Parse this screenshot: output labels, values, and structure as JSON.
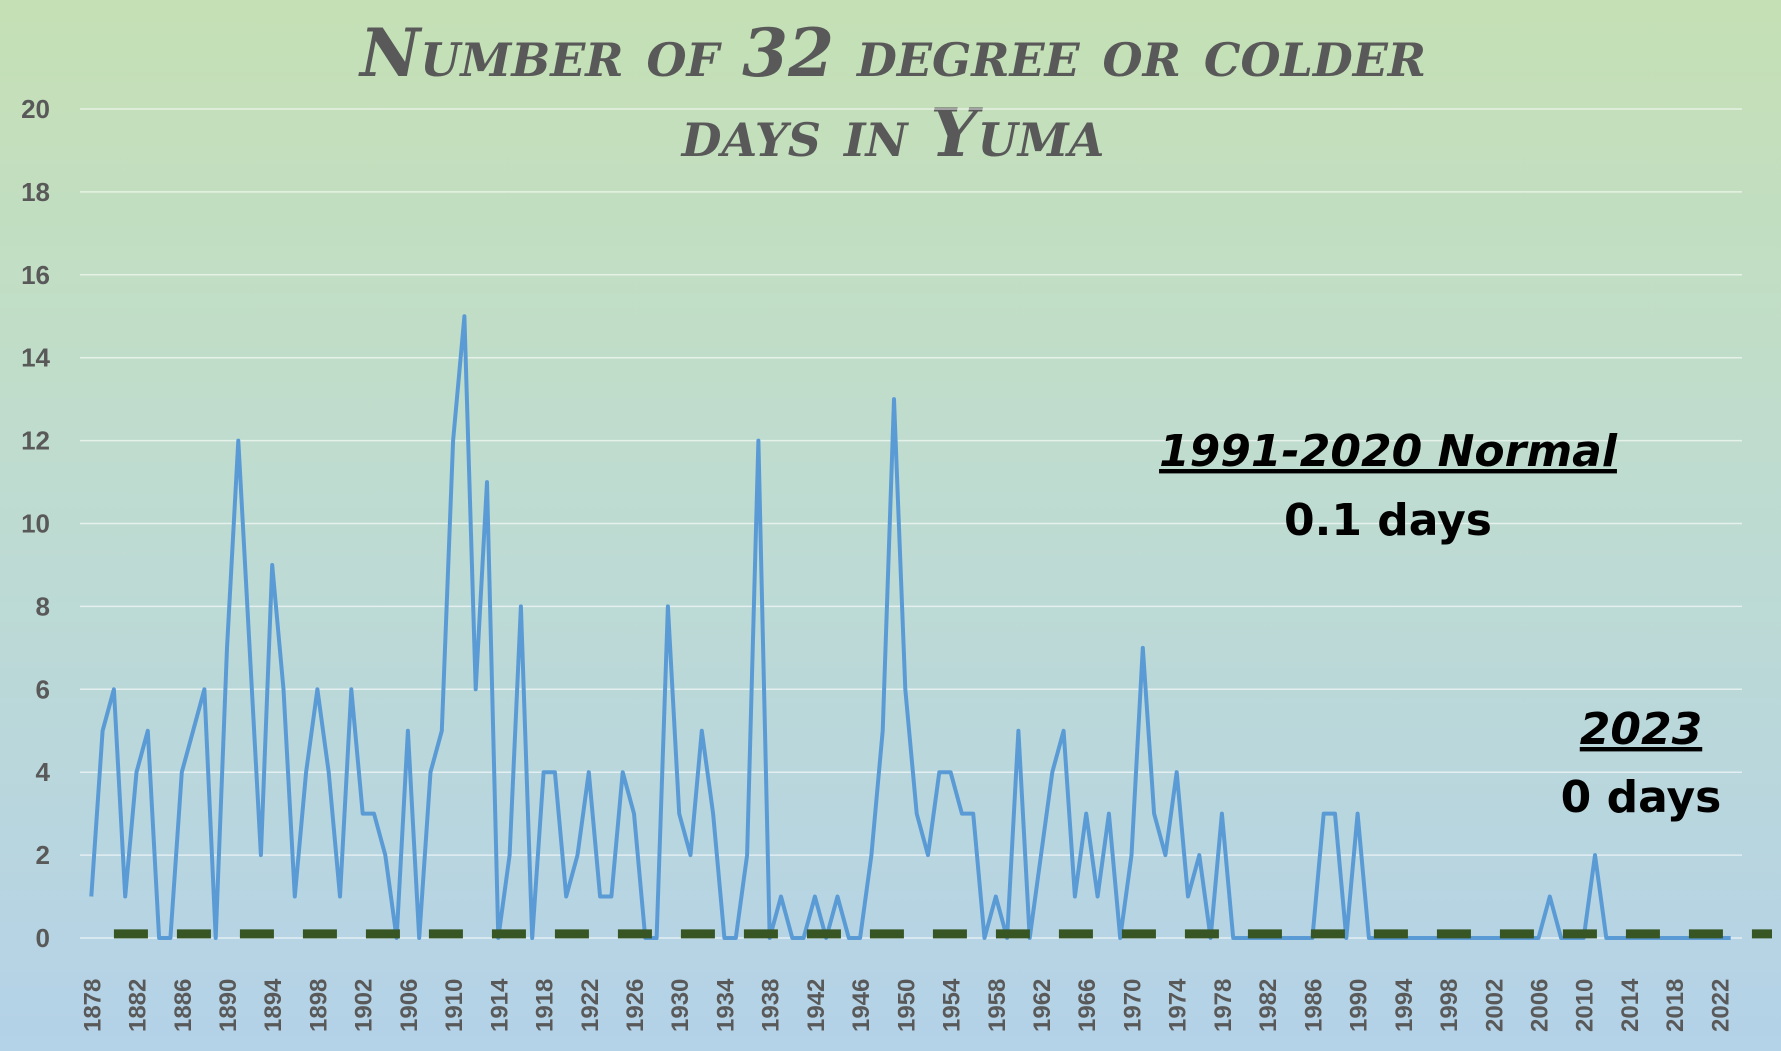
{
  "chart_data": {
    "type": "line",
    "title_lines": [
      "Number of 32 degree or colder",
      "days in Yuma"
    ],
    "xlabel": "",
    "ylabel": "",
    "ylim": [
      0,
      20
    ],
    "yticks": [
      "0",
      "2",
      "4",
      "6",
      "8",
      "10",
      "12",
      "14",
      "16",
      "18",
      "20"
    ],
    "grid": true,
    "x": [
      1878,
      1879,
      1880,
      1881,
      1882,
      1883,
      1884,
      1885,
      1886,
      1887,
      1888,
      1889,
      1890,
      1891,
      1892,
      1893,
      1894,
      1895,
      1896,
      1897,
      1898,
      1899,
      1900,
      1901,
      1902,
      1903,
      1904,
      1905,
      1906,
      1907,
      1908,
      1909,
      1910,
      1911,
      1912,
      1913,
      1914,
      1915,
      1916,
      1917,
      1918,
      1919,
      1920,
      1921,
      1922,
      1923,
      1924,
      1925,
      1926,
      1927,
      1928,
      1929,
      1930,
      1931,
      1932,
      1933,
      1934,
      1935,
      1936,
      1937,
      1938,
      1939,
      1940,
      1941,
      1942,
      1943,
      1944,
      1945,
      1946,
      1947,
      1948,
      1949,
      1950,
      1951,
      1952,
      1953,
      1954,
      1955,
      1956,
      1957,
      1958,
      1959,
      1960,
      1961,
      1962,
      1963,
      1964,
      1965,
      1966,
      1967,
      1968,
      1969,
      1970,
      1971,
      1972,
      1973,
      1974,
      1975,
      1976,
      1977,
      1978,
      1979,
      1980,
      1981,
      1982,
      1983,
      1984,
      1985,
      1986,
      1987,
      1988,
      1989,
      1990,
      1991,
      1992,
      1993,
      1994,
      1995,
      1996,
      1997,
      1998,
      1999,
      2000,
      2001,
      2002,
      2003,
      2004,
      2005,
      2006,
      2007,
      2008,
      2009,
      2010,
      2011,
      2012,
      2013,
      2014,
      2015,
      2016,
      2017,
      2018,
      2019,
      2020,
      2021,
      2022,
      2023
    ],
    "xtick_labels": [
      "1878",
      "1882",
      "1886",
      "1890",
      "1894",
      "1898",
      "1902",
      "1906",
      "1910",
      "1914",
      "1918",
      "1922",
      "1926",
      "1930",
      "1934",
      "1938",
      "1942",
      "1946",
      "1950",
      "1954",
      "1958",
      "1962",
      "1966",
      "1970",
      "1974",
      "1978",
      "1982",
      "1986",
      "1990",
      "1994",
      "1998",
      "2002",
      "2006",
      "2010",
      "2014",
      "2018",
      "2022"
    ],
    "series": [
      {
        "color": "#5b9bd5",
        "style": "solid",
        "values": [
          1,
          5,
          6,
          1,
          4,
          5,
          0,
          0,
          4,
          5,
          6,
          0,
          7,
          12,
          7,
          2,
          9,
          6,
          1,
          4,
          6,
          4,
          1,
          6,
          3,
          3,
          2,
          0,
          5,
          0,
          4,
          5,
          12,
          15,
          6,
          11,
          0,
          2,
          8,
          0,
          4,
          4,
          1,
          2,
          4,
          1,
          1,
          4,
          3,
          0,
          0,
          8,
          3,
          2,
          5,
          3,
          0,
          0,
          2,
          12,
          0,
          1,
          0,
          0,
          1,
          0,
          1,
          0,
          0,
          2,
          5,
          13,
          6,
          3,
          2,
          4,
          4,
          3,
          3,
          0,
          1,
          0,
          5,
          0,
          2,
          4,
          5,
          1,
          3,
          1,
          3,
          0,
          2,
          7,
          3,
          2,
          4,
          1,
          2,
          0,
          3,
          0,
          0,
          0,
          0,
          0,
          0,
          0,
          0,
          3,
          3,
          0,
          3,
          0,
          0,
          0,
          0,
          0,
          0,
          0,
          0,
          0,
          0,
          0,
          0,
          0,
          0,
          0,
          0,
          1,
          0,
          0,
          0,
          2,
          0,
          0,
          0,
          0,
          0,
          0,
          0,
          0,
          0,
          0,
          0,
          0
        ]
      },
      {
        "color": "#375623",
        "style": "dashed",
        "value": 0.1,
        "x_range": [
          1880,
          2023
        ]
      }
    ],
    "annotations": [
      {
        "heading": "1991-2020 Normal",
        "value": "0.1 days"
      },
      {
        "heading": "2023",
        "value": "0 days"
      }
    ]
  }
}
